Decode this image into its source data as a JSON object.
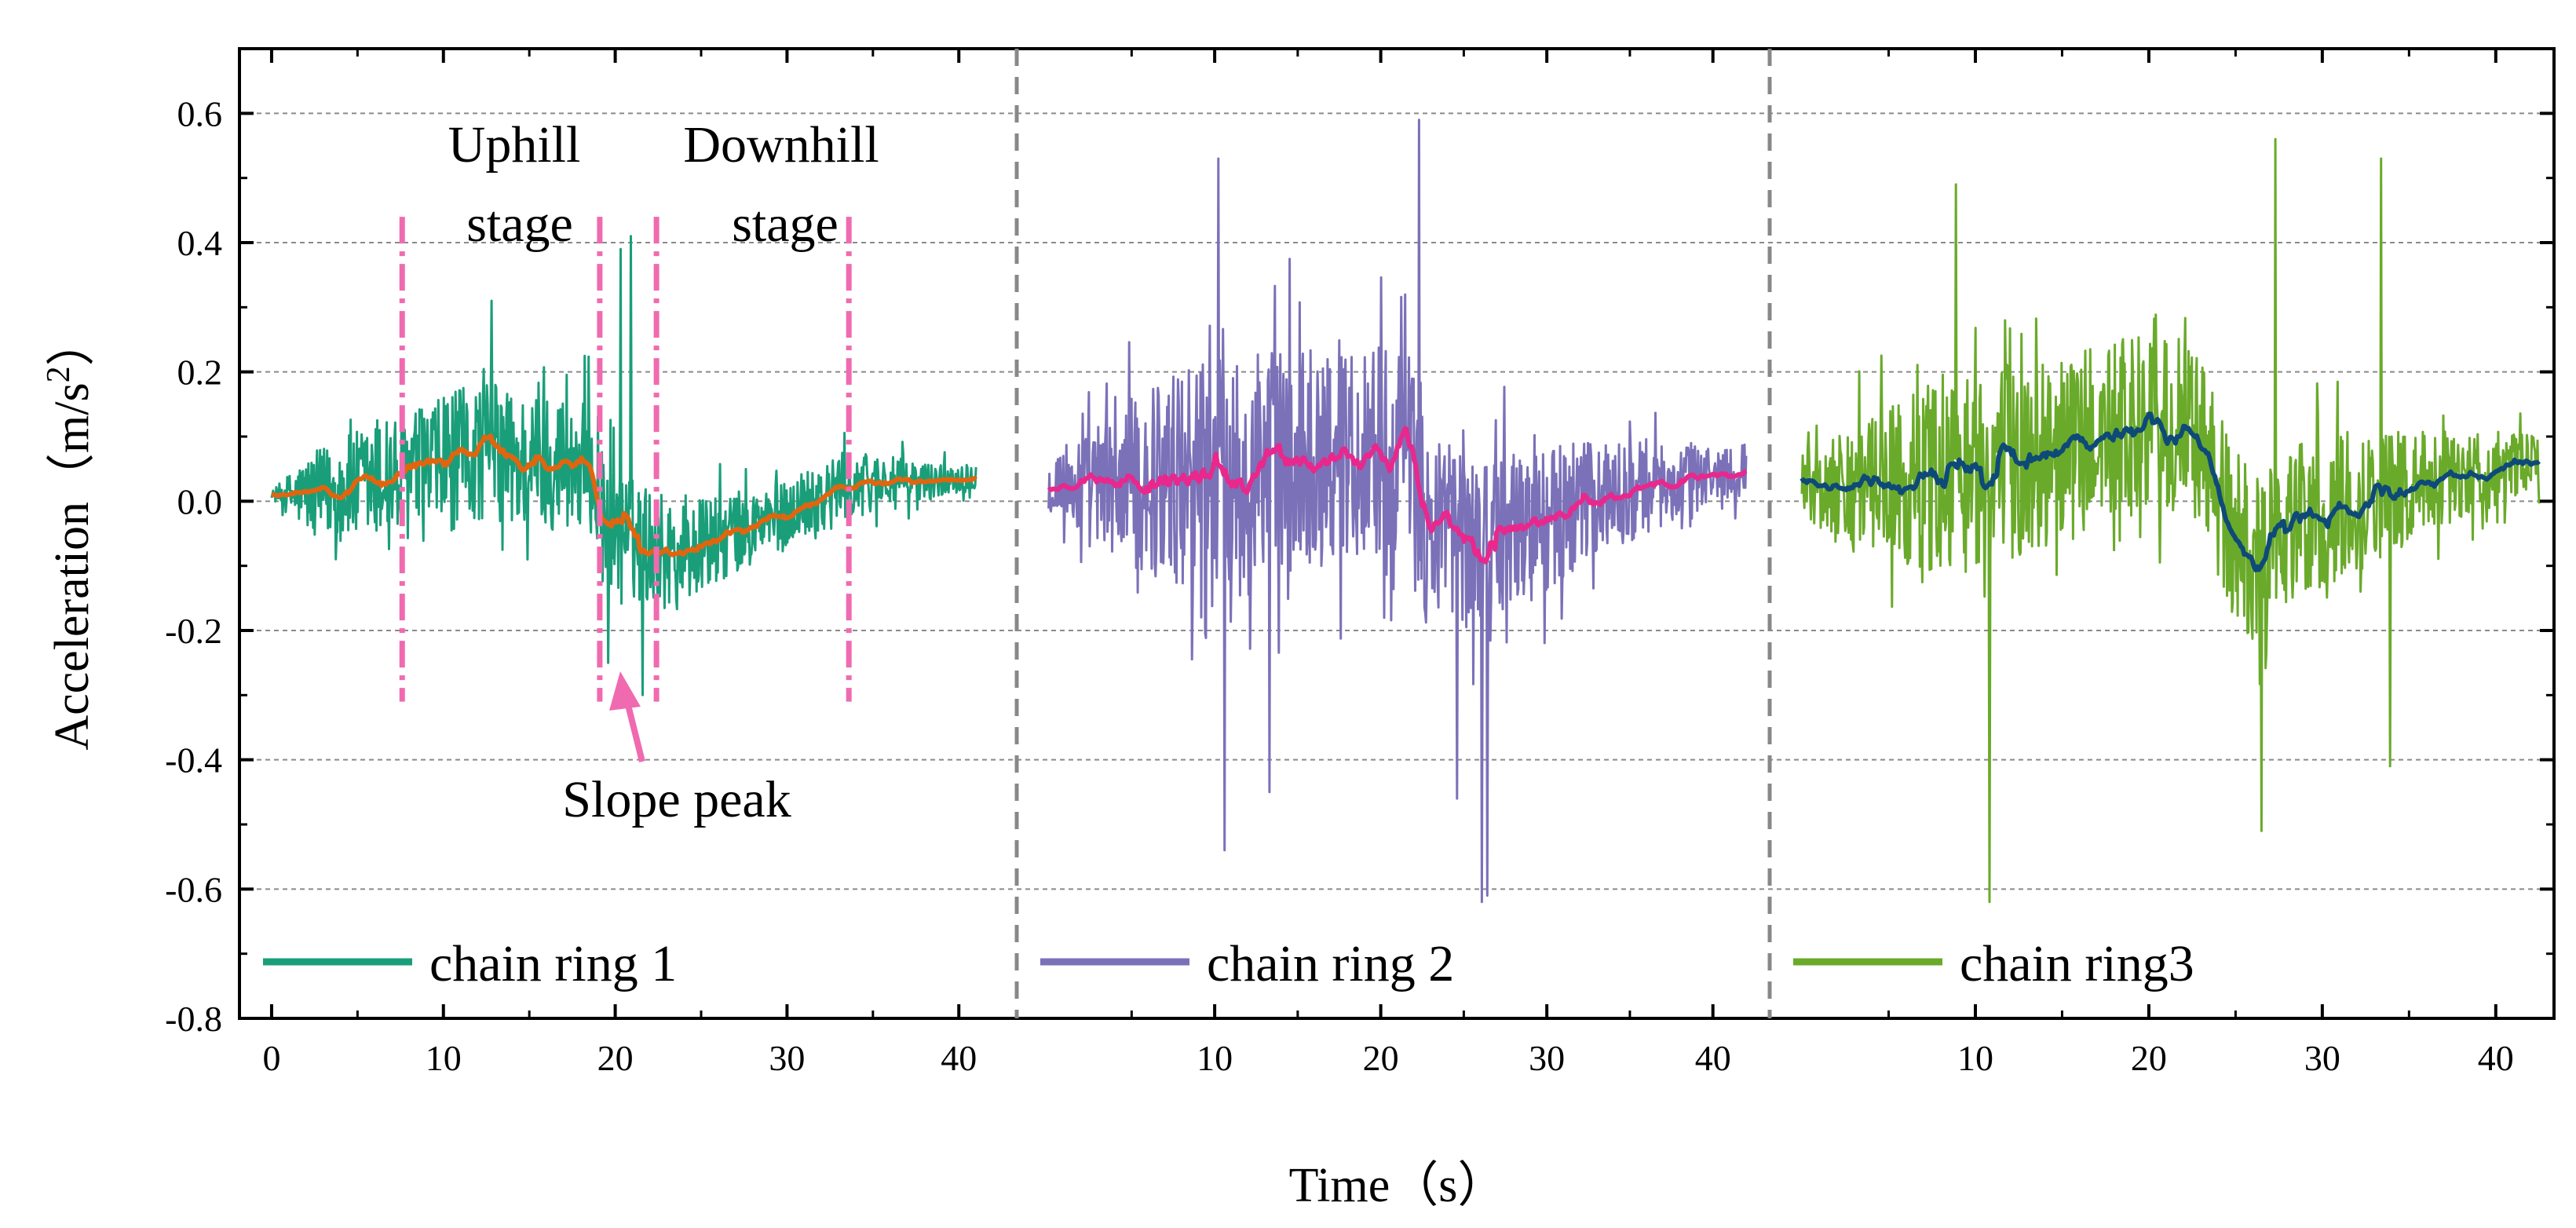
{
  "chart_data": {
    "type": "line",
    "title": "",
    "xlabel": "Time（s）",
    "ylabel_main": "Acceleration（m/s",
    "ylabel_sup": "2",
    "ylabel_end": "）",
    "ylim": [
      -0.8,
      0.7
    ],
    "y_ticks": [
      "0.6",
      "0.4",
      "0.2",
      "0.0",
      "-0.2",
      "-0.4",
      "-0.6",
      "-0.8"
    ],
    "y_tick_values": [
      0.6,
      0.4,
      0.2,
      0.0,
      -0.2,
      -0.4,
      -0.6,
      -0.8
    ],
    "grid": true,
    "panels": [
      {
        "name": "chain ring 1",
        "legend": "chain ring 1",
        "xlim": [
          -0.5,
          42
        ],
        "x_ticks": [
          "0",
          "10",
          "20",
          "30",
          "40"
        ],
        "x_tick_values": [
          0,
          10,
          20,
          30,
          40
        ],
        "raw_color": "#1a9e7a",
        "smooth_color": "#e0650f",
        "duration": 41,
        "raw_range": [
          -0.3,
          0.42
        ],
        "segments": [
          [
            0,
            0.01
          ],
          [
            2,
            0.01
          ],
          [
            5,
            0.02
          ],
          [
            8,
            0.04
          ],
          [
            10,
            0.05
          ],
          [
            12,
            0.08
          ],
          [
            14,
            0.06
          ],
          [
            16,
            0.06
          ],
          [
            18.5,
            0.06
          ],
          [
            19.2,
            -0.02
          ],
          [
            21,
            -0.06
          ],
          [
            24,
            -0.08
          ],
          [
            27,
            -0.05
          ],
          [
            30,
            -0.02
          ],
          [
            33,
            0.02
          ],
          [
            35,
            0.03
          ],
          [
            38,
            0.03
          ],
          [
            41,
            0.04
          ]
        ],
        "noise": [
          [
            0,
            0.005
          ],
          [
            2,
            0.06
          ],
          [
            5,
            0.09
          ],
          [
            10,
            0.11
          ],
          [
            14,
            0.11
          ],
          [
            18,
            0.1
          ],
          [
            20,
            0.1
          ],
          [
            24,
            0.08
          ],
          [
            30,
            0.05
          ],
          [
            34,
            0.05
          ],
          [
            38,
            0.03
          ],
          [
            41,
            0.02
          ]
        ],
        "spikes": [
          [
            20.3,
            0.39
          ],
          [
            20.9,
            0.41
          ],
          [
            21.6,
            -0.3
          ],
          [
            19.6,
            -0.25
          ],
          [
            12.8,
            0.31
          ]
        ]
      },
      {
        "name": "chain ring 2",
        "legend": "chain ring 2",
        "xlim": [
          -0.5,
          42
        ],
        "x_ticks": [
          "10",
          "20",
          "30",
          "40"
        ],
        "x_tick_values": [
          10,
          20,
          30,
          40
        ],
        "raw_color": "#7b71b8",
        "smooth_color": "#e8288c",
        "duration": 42,
        "raw_range": [
          -0.62,
          0.59
        ],
        "segments": [
          [
            0,
            0.03
          ],
          [
            3,
            0.02
          ],
          [
            6,
            0.03
          ],
          [
            10,
            0.05
          ],
          [
            14,
            0.07
          ],
          [
            18,
            0.08
          ],
          [
            21.5,
            0.09
          ],
          [
            22.5,
            -0.02
          ],
          [
            25,
            -0.06
          ],
          [
            27,
            -0.05
          ],
          [
            30,
            -0.03
          ],
          [
            34,
            0.01
          ],
          [
            38,
            0.03
          ],
          [
            42,
            0.05
          ]
        ],
        "noise": [
          [
            0,
            0.05
          ],
          [
            4,
            0.12
          ],
          [
            8,
            0.17
          ],
          [
            14,
            0.18
          ],
          [
            20,
            0.17
          ],
          [
            24,
            0.15
          ],
          [
            28,
            0.13
          ],
          [
            32,
            0.1
          ],
          [
            36,
            0.07
          ],
          [
            40,
            0.05
          ],
          [
            42,
            0.04
          ]
        ],
        "spikes": [
          [
            10.2,
            0.53
          ],
          [
            10.6,
            -0.54
          ],
          [
            22.3,
            0.59
          ],
          [
            26.1,
            -0.62
          ],
          [
            26.4,
            -0.61
          ],
          [
            24.6,
            -0.46
          ],
          [
            13.3,
            -0.45
          ]
        ]
      },
      {
        "name": "chain ring3",
        "legend": "chain ring3",
        "xlim": [
          -0.5,
          42
        ],
        "x_ticks": [
          "10",
          "20",
          "30",
          "40"
        ],
        "x_tick_values": [
          10,
          20,
          30,
          40
        ],
        "raw_color": "#6aaa2a",
        "smooth_color": "#0e4a78",
        "duration": 42.5,
        "raw_range": [
          -0.62,
          0.56
        ],
        "segments": [
          [
            0,
            0.03
          ],
          [
            4,
            0.02
          ],
          [
            8,
            0.04
          ],
          [
            12,
            0.06
          ],
          [
            16,
            0.09
          ],
          [
            20,
            0.12
          ],
          [
            23.5,
            0.08
          ],
          [
            24.5,
            -0.04
          ],
          [
            26,
            -0.09
          ],
          [
            28,
            -0.04
          ],
          [
            32,
            0.0
          ],
          [
            36,
            0.03
          ],
          [
            40,
            0.05
          ],
          [
            42.5,
            0.06
          ]
        ],
        "noise": [
          [
            0,
            0.05
          ],
          [
            4,
            0.12
          ],
          [
            8,
            0.15
          ],
          [
            14,
            0.15
          ],
          [
            20,
            0.14
          ],
          [
            24,
            0.14
          ],
          [
            28,
            0.13
          ],
          [
            32,
            0.11
          ],
          [
            36,
            0.08
          ],
          [
            40,
            0.06
          ],
          [
            42.5,
            0.04
          ]
        ],
        "spikes": [
          [
            8.9,
            0.49
          ],
          [
            10.8,
            -0.62
          ],
          [
            27.3,
            0.56
          ],
          [
            33.4,
            0.53
          ],
          [
            26.5,
            -0.51
          ],
          [
            33.9,
            -0.41
          ]
        ]
      }
    ],
    "annotations": {
      "uphill_line1": "Uphill",
      "uphill_line2": "stage",
      "downhill_line1": "Downhill",
      "downhill_line2": "stage",
      "slope_peak": "Slope peak",
      "stage_boundaries": [
        7.6,
        19.1,
        22.4,
        33.6
      ],
      "annotation_color": "#f06ab0"
    }
  }
}
